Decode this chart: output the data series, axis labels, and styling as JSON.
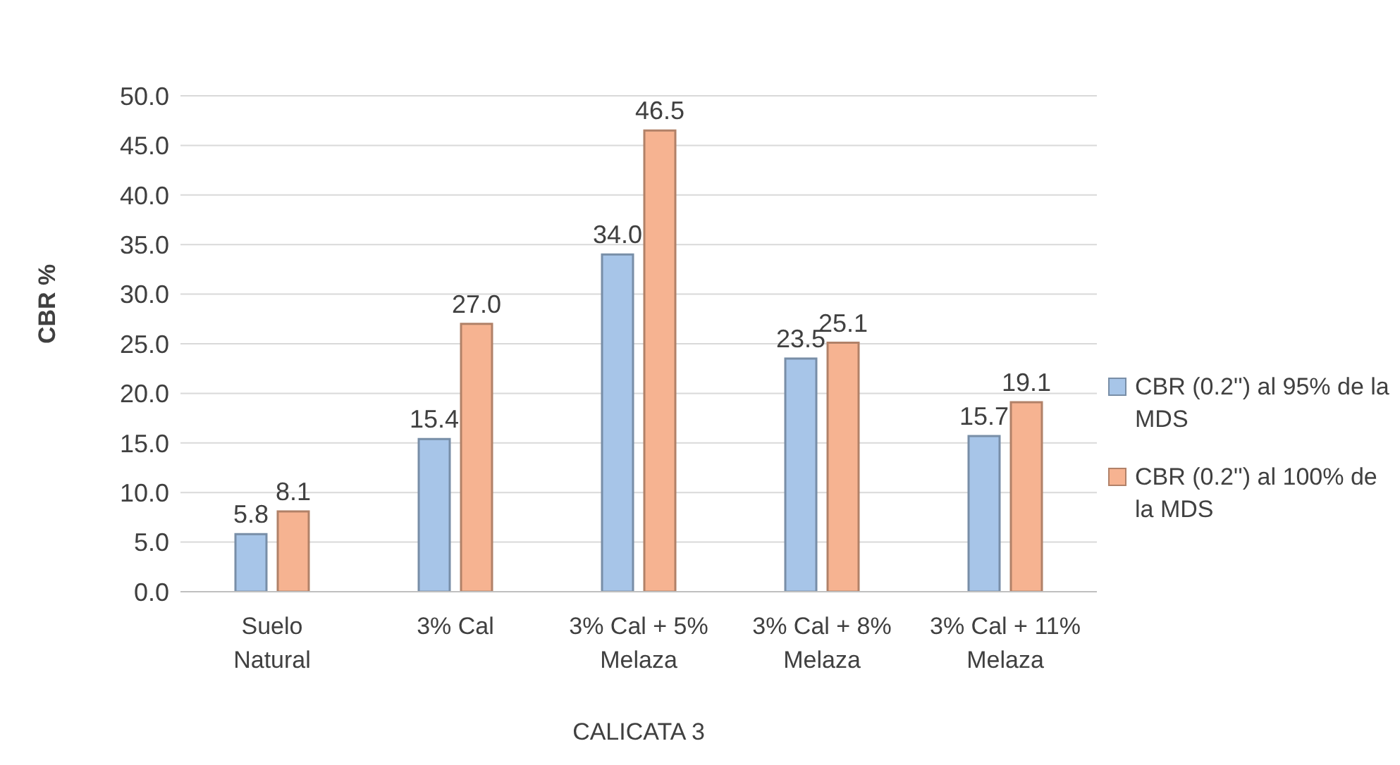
{
  "chart_data": {
    "type": "bar",
    "xlabel": "CALICATA 3",
    "ylabel": "CBR %",
    "categories": [
      "Suelo Natural",
      "3% Cal",
      "3% Cal + 5% Melaza",
      "3% Cal + 8% Melaza",
      "3% Cal + 11% Melaza"
    ],
    "series": [
      {
        "name": "CBR (0.2'') al 95% de la MDS",
        "color": "#a7c5e8",
        "values": [
          5.8,
          15.4,
          34.0,
          23.5,
          15.7
        ],
        "value_labels": [
          "5.8",
          "15.4",
          "34.0",
          "23.5",
          "15.7"
        ]
      },
      {
        "name": "CBR (0.2'') al 100% de la MDS",
        "color": "#f6b391",
        "values": [
          8.1,
          27.0,
          46.5,
          25.1,
          19.1
        ],
        "value_labels": [
          "8.1",
          "27.0",
          "46.5",
          "25.1",
          "19.1"
        ]
      }
    ],
    "ylim": [
      0,
      50
    ],
    "yticks": [
      {
        "value": 0,
        "label": "0.0"
      },
      {
        "value": 5,
        "label": "5.0"
      },
      {
        "value": 10,
        "label": "10.0"
      },
      {
        "value": 15,
        "label": "15.0"
      },
      {
        "value": 20,
        "label": "20.0"
      },
      {
        "value": 25,
        "label": "25.0"
      },
      {
        "value": 30,
        "label": "30.0"
      },
      {
        "value": 35,
        "label": "35.0"
      },
      {
        "value": 40,
        "label": "40.0"
      },
      {
        "value": 45,
        "label": "45.0"
      },
      {
        "value": 50,
        "label": "50.0"
      }
    ],
    "grid": "y",
    "legend": "right"
  }
}
